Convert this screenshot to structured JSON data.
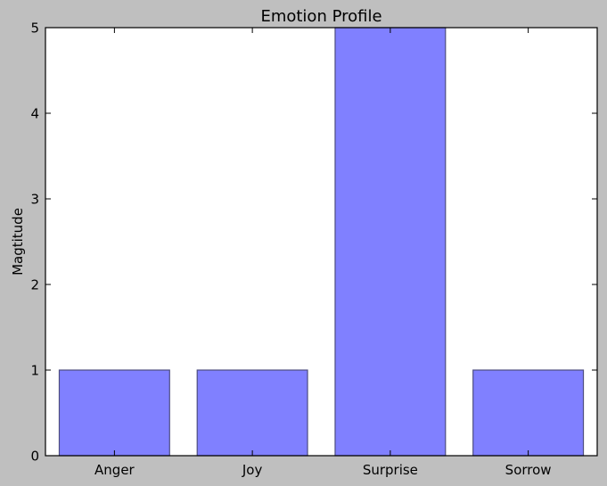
{
  "chart_data": {
    "type": "bar",
    "title": "Emotion Profile",
    "xlabel": "",
    "ylabel": "Magtitude",
    "categories": [
      "Anger",
      "Joy",
      "Surprise",
      "Sorrow"
    ],
    "values": [
      1,
      1,
      5,
      1
    ],
    "ylim": [
      0,
      5
    ],
    "yticks": [
      0,
      1,
      2,
      3,
      4,
      5
    ],
    "grid": false,
    "legend": "none"
  },
  "colors": {
    "figure_background": "#bfbfbf",
    "plot_background": "#ffffff",
    "bar_fill": "#8080ff",
    "bar_edge": "#4d4d80",
    "axis": "#000000"
  }
}
